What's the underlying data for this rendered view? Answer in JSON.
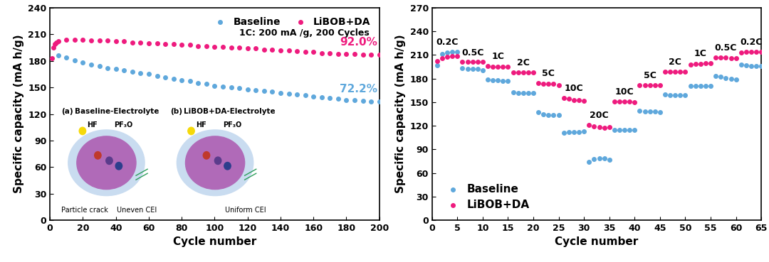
{
  "chart_data": [
    {
      "type": "scatter",
      "x_label": "Cycle number",
      "y_label": "Specific capacity (mA h/g)",
      "x": [
        1,
        2,
        3,
        4,
        5,
        10,
        15,
        20,
        25,
        30,
        35,
        40,
        45,
        50,
        55,
        60,
        65,
        70,
        75,
        80,
        85,
        90,
        95,
        100,
        105,
        110,
        115,
        120,
        125,
        130,
        135,
        140,
        145,
        150,
        155,
        160,
        165,
        170,
        175,
        180,
        185,
        190,
        195,
        200
      ],
      "xlim": [
        0,
        200
      ],
      "xticks": [
        0,
        20,
        40,
        60,
        80,
        100,
        120,
        140,
        160,
        180,
        200
      ],
      "ylim": [
        0,
        240
      ],
      "yticks": [
        0,
        30,
        60,
        90,
        120,
        150,
        180,
        210,
        240
      ],
      "legend": "upper right",
      "marker": "o",
      "series": [
        {
          "name": "Baseline",
          "color": "#5fa8dc",
          "end_label": "72.2%",
          "values": [
            null,
            null,
            null,
            null,
            186,
            184,
            181,
            178,
            176,
            174,
            172,
            171,
            169,
            168,
            166,
            165,
            163,
            161,
            160,
            158,
            157,
            155,
            154,
            152,
            151,
            150,
            149,
            148,
            147,
            146,
            145,
            144,
            143,
            142,
            141,
            140,
            139,
            138,
            137,
            136,
            136,
            135,
            134,
            134
          ]
        },
        {
          "name": "LiBOB+DA",
          "color": "#ee1b7e",
          "end_label": "92.0%",
          "values": [
            183,
            195,
            199,
            201,
            202,
            204,
            204,
            204,
            203.5,
            203,
            203,
            202,
            202,
            201,
            201,
            200,
            200,
            199,
            199,
            198,
            198,
            197,
            197,
            196,
            196,
            195,
            195,
            194,
            194,
            193,
            193,
            192,
            192,
            191,
            190,
            190,
            189,
            189,
            188,
            188,
            188,
            187,
            187,
            187
          ]
        }
      ],
      "annotations": [
        "1C: 200 mA /g, 200 Cycles"
      ],
      "insets": [
        {
          "label": "(a)",
          "title": "Baseline-Electrolyte",
          "texts": [
            "HF",
            "PF₃O",
            "Particle crack",
            "Uneven CEI"
          ]
        },
        {
          "label": "(b)",
          "title": "LiBOB+DA-Electrolyte",
          "texts": [
            "HF",
            "PF₃O",
            "Uniform CEI"
          ]
        }
      ]
    },
    {
      "type": "scatter",
      "x_label": "Cycle number",
      "y_label": "Specific capacity (mA h/g)",
      "x": [
        1,
        2,
        3,
        4,
        5,
        6,
        7,
        8,
        9,
        10,
        11,
        12,
        13,
        14,
        15,
        16,
        17,
        18,
        19,
        20,
        21,
        22,
        23,
        24,
        25,
        26,
        27,
        28,
        29,
        30,
        31,
        32,
        33,
        34,
        35,
        36,
        37,
        38,
        39,
        40,
        41,
        42,
        43,
        44,
        45,
        46,
        47,
        48,
        49,
        50,
        51,
        52,
        53,
        54,
        55,
        56,
        57,
        58,
        59,
        60,
        61,
        62,
        63,
        64,
        65
      ],
      "xlim": [
        0,
        65
      ],
      "xticks": [
        0,
        5,
        10,
        15,
        20,
        25,
        30,
        35,
        40,
        45,
        50,
        55,
        60,
        65
      ],
      "ylim": [
        0,
        270
      ],
      "yticks": [
        0,
        30,
        60,
        90,
        120,
        150,
        180,
        210,
        240,
        270
      ],
      "legend": "lower left",
      "marker": "o",
      "rate_labels": [
        "0.2C",
        "0.5C",
        "1C",
        "2C",
        "5C",
        "10C",
        "20C",
        "10C",
        "5C",
        "2C",
        "1C",
        "0.5C",
        "0.2C"
      ],
      "series": [
        {
          "name": "Baseline",
          "color": "#5fa8dc",
          "values": [
            197,
            211,
            213,
            214,
            214,
            193,
            192,
            192,
            192,
            191,
            179,
            178,
            178,
            177,
            177,
            163,
            162,
            162,
            162,
            162,
            137,
            135,
            134,
            134,
            134,
            111,
            112,
            112,
            112,
            113,
            74,
            78,
            79,
            79,
            77,
            115,
            115,
            115,
            115,
            115,
            139,
            138,
            138,
            138,
            137,
            160,
            159,
            159,
            159,
            159,
            171,
            171,
            171,
            171,
            171,
            183,
            182,
            181,
            180,
            179,
            198,
            197,
            196,
            196,
            196
          ]
        },
        {
          "name": "LiBOB+DA",
          "color": "#ee1b7e",
          "values": [
            202,
            206,
            208,
            209,
            209,
            201,
            201,
            201,
            201,
            201,
            196,
            195,
            195,
            195,
            195,
            188,
            188,
            188,
            188,
            188,
            174,
            173,
            173,
            173,
            172,
            155,
            154,
            153,
            153,
            152,
            121,
            119,
            118,
            117,
            118,
            151,
            151,
            151,
            151,
            150,
            172,
            172,
            172,
            172,
            172,
            189,
            189,
            189,
            189,
            189,
            198,
            199,
            199,
            200,
            200,
            207,
            207,
            207,
            206,
            206,
            213,
            214,
            214,
            214,
            214
          ]
        }
      ]
    }
  ]
}
